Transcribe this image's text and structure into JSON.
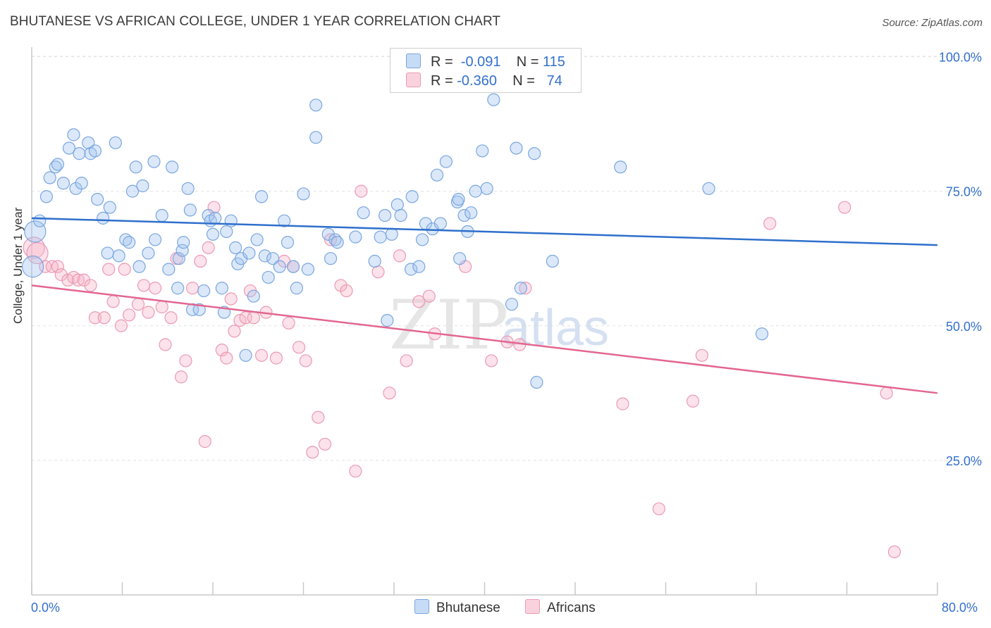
{
  "title": "BHUTANESE VS AFRICAN COLLEGE, UNDER 1 YEAR CORRELATION CHART",
  "source": "Source: ZipAtlas.com",
  "watermark": {
    "zip": "ZIP",
    "atlas": "atlas"
  },
  "legend_top": {
    "rows": [
      {
        "r_label": "R =",
        "r_value": "-0.091",
        "n_label": "N =",
        "n_value": "115",
        "color": "#a9c8f0"
      },
      {
        "r_label": "R =",
        "r_value": "-0.360",
        "n_label": "N =",
        "n_value": "74",
        "color": "#f6b7c9"
      }
    ]
  },
  "legend_bottom": {
    "items": [
      "Bhutanese",
      "Africans"
    ]
  },
  "colors": {
    "blue_fill": "rgba(160,195,240,0.38)",
    "blue_stroke": "#7aa6df",
    "blue_line": "#2e6fcc",
    "pink_fill": "rgba(246,180,200,0.38)",
    "pink_stroke": "#ea9ab3",
    "pink_line": "#e3668f",
    "tick_label": "#3370cc",
    "grid": "#e3e3e3"
  },
  "chart_data": {
    "type": "scatter",
    "title": "BHUTANESE VS AFRICAN COLLEGE, UNDER 1 YEAR CORRELATION CHART",
    "xlabel": "",
    "ylabel": "College, Under 1 year",
    "xlim": [
      0,
      80
    ],
    "ylim": [
      0,
      102
    ],
    "x_tick_labels": [
      "0.0%",
      "80.0%"
    ],
    "y_ticks": [
      25,
      50,
      75,
      100
    ],
    "y_tick_labels": [
      "25.0%",
      "50.0%",
      "75.0%",
      "100.0%"
    ],
    "grid": true,
    "series": [
      {
        "name": "Bhutanese",
        "r": -0.091,
        "n": 115,
        "trend": {
          "x": [
            0,
            80
          ],
          "y": [
            70.0,
            65.0
          ]
        },
        "points": [
          [
            0.1,
            61
          ],
          [
            0.3,
            67.5
          ],
          [
            0.7,
            69.5
          ],
          [
            1.3,
            74
          ],
          [
            1.6,
            77.5
          ],
          [
            2.1,
            79.5
          ],
          [
            2.3,
            80
          ],
          [
            2.8,
            76.5
          ],
          [
            3.3,
            83
          ],
          [
            3.7,
            85.5
          ],
          [
            3.9,
            75.5
          ],
          [
            4.2,
            82
          ],
          [
            4.4,
            76.5
          ],
          [
            5,
            84
          ],
          [
            5.2,
            82
          ],
          [
            5.6,
            82.5
          ],
          [
            5.8,
            73.5
          ],
          [
            6.3,
            70
          ],
          [
            6.7,
            63.5
          ],
          [
            6.9,
            72
          ],
          [
            7.4,
            84
          ],
          [
            7.7,
            63
          ],
          [
            8.3,
            66
          ],
          [
            8.6,
            65.5
          ],
          [
            8.9,
            75
          ],
          [
            9.2,
            79.5
          ],
          [
            9.5,
            61
          ],
          [
            9.8,
            76
          ],
          [
            10.3,
            63.5
          ],
          [
            10.8,
            80.5
          ],
          [
            10.9,
            66
          ],
          [
            11.5,
            70.5
          ],
          [
            12.1,
            60.5
          ],
          [
            12.4,
            79.5
          ],
          [
            12.9,
            57
          ],
          [
            13,
            62.5
          ],
          [
            13.3,
            64
          ],
          [
            13.4,
            65.5
          ],
          [
            13.8,
            75.5
          ],
          [
            14,
            71.5
          ],
          [
            14.2,
            53
          ],
          [
            14.8,
            53
          ],
          [
            15.2,
            56.5
          ],
          [
            15.6,
            70.5
          ],
          [
            15.8,
            69.5
          ],
          [
            16,
            67
          ],
          [
            16.2,
            70
          ],
          [
            16.8,
            57
          ],
          [
            17,
            52.5
          ],
          [
            17.2,
            67.5
          ],
          [
            17.6,
            69.5
          ],
          [
            18,
            64.5
          ],
          [
            18.2,
            61.5
          ],
          [
            18.5,
            62.5
          ],
          [
            18.9,
            44.5
          ],
          [
            19.2,
            63.5
          ],
          [
            19.6,
            55.5
          ],
          [
            19.9,
            66
          ],
          [
            20.3,
            74
          ],
          [
            20.6,
            63
          ],
          [
            20.9,
            59
          ],
          [
            21.3,
            62.5
          ],
          [
            21.9,
            61
          ],
          [
            22.3,
            69.5
          ],
          [
            22.6,
            65.5
          ],
          [
            23.1,
            61
          ],
          [
            23.4,
            57
          ],
          [
            24,
            74.5
          ],
          [
            24.4,
            60.5
          ],
          [
            25.1,
            91
          ],
          [
            25.1,
            85
          ],
          [
            26.2,
            67
          ],
          [
            26.4,
            62.5
          ],
          [
            26.8,
            66
          ],
          [
            27,
            65.5
          ],
          [
            28.6,
            66.5
          ],
          [
            29.3,
            71
          ],
          [
            30.3,
            62
          ],
          [
            30.8,
            66.5
          ],
          [
            31.2,
            70.5
          ],
          [
            31.4,
            51
          ],
          [
            31.8,
            67
          ],
          [
            32.3,
            72.5
          ],
          [
            32.6,
            70.5
          ],
          [
            33.5,
            60.5
          ],
          [
            33.6,
            74
          ],
          [
            34.2,
            61
          ],
          [
            34.5,
            66
          ],
          [
            34.8,
            69
          ],
          [
            35.4,
            68
          ],
          [
            35.8,
            78
          ],
          [
            36.1,
            69
          ],
          [
            36.6,
            80.5
          ],
          [
            37.6,
            73
          ],
          [
            37.7,
            73.5
          ],
          [
            37.8,
            62.5
          ],
          [
            38.2,
            70.5
          ],
          [
            38.5,
            67.5
          ],
          [
            38.8,
            71
          ],
          [
            39.2,
            75
          ],
          [
            39.8,
            82.5
          ],
          [
            40.2,
            75.5
          ],
          [
            40.8,
            92
          ],
          [
            42.4,
            54
          ],
          [
            42.8,
            83
          ],
          [
            43.2,
            57
          ],
          [
            44.4,
            82
          ],
          [
            44.6,
            39.5
          ],
          [
            46,
            62
          ],
          [
            52,
            79.5
          ],
          [
            59.8,
            75.5
          ],
          [
            64.5,
            48.5
          ]
        ],
        "point_radius_hint": "large marker near x=0"
      },
      {
        "name": "Africans",
        "r": -0.36,
        "n": 74,
        "trend": {
          "x": [
            0,
            80
          ],
          "y": [
            57.5,
            37.5
          ]
        },
        "points": [
          [
            0.2,
            64.5
          ],
          [
            0.5,
            63.5
          ],
          [
            1.2,
            61
          ],
          [
            1.8,
            61
          ],
          [
            2.3,
            61
          ],
          [
            2.6,
            59.5
          ],
          [
            3.2,
            58.5
          ],
          [
            3.7,
            59
          ],
          [
            4.1,
            58.5
          ],
          [
            4.6,
            58.5
          ],
          [
            5.2,
            57.5
          ],
          [
            5.6,
            51.5
          ],
          [
            6.4,
            51.5
          ],
          [
            6.8,
            60.5
          ],
          [
            7.2,
            54.5
          ],
          [
            7.9,
            50
          ],
          [
            8.2,
            60.5
          ],
          [
            8.6,
            52
          ],
          [
            9.4,
            54
          ],
          [
            9.9,
            57.5
          ],
          [
            10.3,
            52.5
          ],
          [
            10.9,
            57
          ],
          [
            11.5,
            53.5
          ],
          [
            11.8,
            46.5
          ],
          [
            12.3,
            51.5
          ],
          [
            12.8,
            62.5
          ],
          [
            13.2,
            40.5
          ],
          [
            13.6,
            43.5
          ],
          [
            14.2,
            57
          ],
          [
            14.9,
            62
          ],
          [
            15.3,
            28.5
          ],
          [
            15.6,
            64.5
          ],
          [
            16.1,
            72
          ],
          [
            16.8,
            45.5
          ],
          [
            17.2,
            44
          ],
          [
            17.6,
            55
          ],
          [
            17.9,
            49
          ],
          [
            18.4,
            51
          ],
          [
            18.9,
            51.5
          ],
          [
            19.3,
            56.5
          ],
          [
            19.6,
            51.5
          ],
          [
            20.3,
            44.5
          ],
          [
            20.7,
            52.5
          ],
          [
            21.6,
            44
          ],
          [
            22.3,
            62
          ],
          [
            22.7,
            50.5
          ],
          [
            23.1,
            61
          ],
          [
            23.6,
            46
          ],
          [
            24.2,
            43.5
          ],
          [
            24.8,
            26.5
          ],
          [
            25.3,
            33
          ],
          [
            25.9,
            28
          ],
          [
            26.4,
            66
          ],
          [
            27.3,
            57.5
          ],
          [
            27.8,
            56.5
          ],
          [
            28.6,
            23
          ],
          [
            29.1,
            75
          ],
          [
            30.6,
            60
          ],
          [
            31.6,
            37.5
          ],
          [
            32.5,
            63
          ],
          [
            33.1,
            43.5
          ],
          [
            34.2,
            54.5
          ],
          [
            35.1,
            55.5
          ],
          [
            35.6,
            48.5
          ],
          [
            38.3,
            61
          ],
          [
            40.6,
            43.5
          ],
          [
            42,
            47
          ],
          [
            43.1,
            46.5
          ],
          [
            43.6,
            57
          ],
          [
            52.2,
            35.5
          ],
          [
            55.4,
            16
          ],
          [
            58.4,
            36
          ],
          [
            59.2,
            44.5
          ],
          [
            65.2,
            69
          ],
          [
            71.8,
            72
          ],
          [
            75.5,
            37.5
          ],
          [
            76.2,
            8
          ]
        ]
      }
    ]
  }
}
